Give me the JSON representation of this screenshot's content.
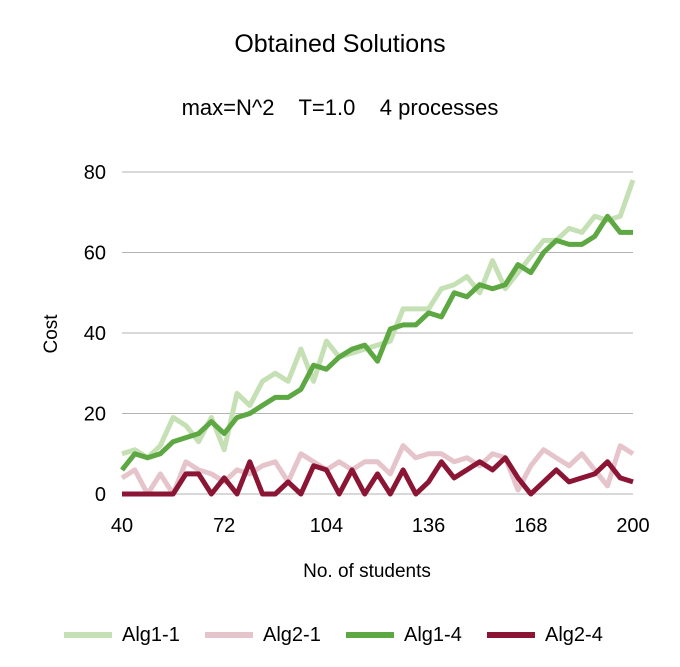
{
  "chart_data": {
    "type": "line",
    "title": "Obtained Solutions",
    "subtitle": "max=N^2    T=1.0    4 processes",
    "xlabel": "No. of students",
    "ylabel": "Cost",
    "xlim": [
      40,
      200
    ],
    "ylim": [
      0,
      80
    ],
    "xticks": [
      "40",
      "72",
      "104",
      "136",
      "168",
      "200"
    ],
    "yticks": [
      "0",
      "20",
      "40",
      "60",
      "80"
    ],
    "grid": "horizontal",
    "legend_position": "bottom",
    "x": [
      40,
      44,
      48,
      52,
      56,
      60,
      64,
      68,
      72,
      76,
      80,
      84,
      88,
      92,
      96,
      100,
      104,
      108,
      112,
      116,
      120,
      124,
      128,
      132,
      136,
      140,
      144,
      148,
      152,
      156,
      160,
      164,
      168,
      172,
      176,
      180,
      184,
      188,
      192,
      196,
      200
    ],
    "series": [
      {
        "name": "Alg1-1",
        "color": "#c5e0b4",
        "values": [
          10,
          11,
          9,
          12,
          19,
          17,
          13,
          19,
          11,
          25,
          22,
          28,
          30,
          28,
          36,
          28,
          38,
          34,
          35,
          36,
          37,
          38,
          46,
          46,
          46,
          51,
          52,
          54,
          50,
          58,
          51,
          55,
          59,
          63,
          63,
          66,
          65,
          69,
          68,
          69,
          78
        ]
      },
      {
        "name": "Alg2-1",
        "color": "#e6c4cc",
        "values": [
          4,
          6,
          0,
          5,
          0,
          8,
          6,
          5,
          3,
          6,
          5,
          7,
          8,
          3,
          10,
          8,
          6,
          8,
          6,
          8,
          8,
          5,
          12,
          9,
          10,
          10,
          8,
          9,
          7,
          10,
          9,
          1,
          7,
          11,
          9,
          7,
          10,
          6,
          2,
          12,
          10
        ]
      },
      {
        "name": "Alg1-4",
        "color": "#5ea843",
        "values": [
          6,
          10,
          9,
          10,
          13,
          14,
          15,
          18,
          15,
          19,
          20,
          22,
          24,
          24,
          26,
          32,
          31,
          34,
          36,
          37,
          33,
          41,
          42,
          42,
          45,
          44,
          50,
          49,
          52,
          51,
          52,
          57,
          55,
          60,
          63,
          62,
          62,
          64,
          69,
          65,
          65
        ]
      },
      {
        "name": "Alg2-4",
        "color": "#8b1535",
        "values": [
          0,
          0,
          0,
          0,
          0,
          5,
          5,
          0,
          4,
          0,
          8,
          0,
          0,
          3,
          0,
          7,
          6,
          0,
          6,
          0,
          5,
          0,
          6,
          0,
          3,
          8,
          4,
          6,
          8,
          6,
          9,
          4,
          0,
          3,
          6,
          3,
          4,
          5,
          8,
          4,
          3
        ]
      }
    ]
  }
}
